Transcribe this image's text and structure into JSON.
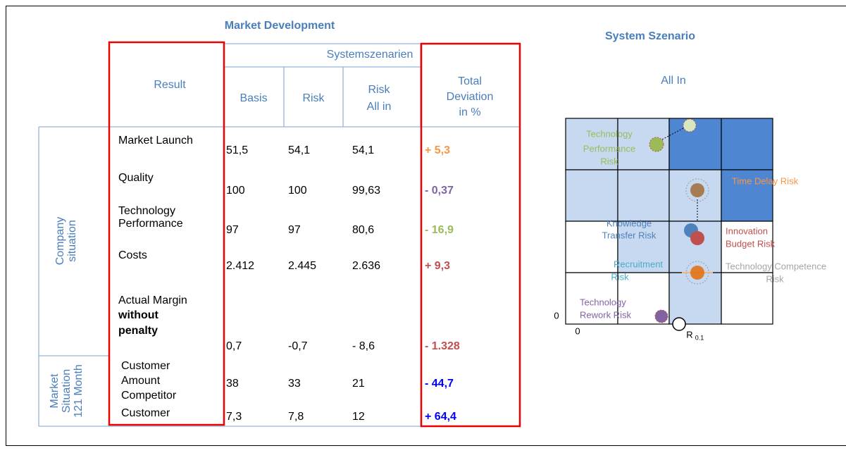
{
  "table": {
    "title": "Market Development",
    "group_header": "Systemszenarien",
    "columns": [
      [
        "Result"
      ],
      [
        "Basis"
      ],
      [
        "Risk"
      ],
      [
        "Risk",
        "All in"
      ],
      [
        "Total",
        "Deviation",
        "in %"
      ]
    ],
    "groups": [
      [
        "Company",
        "situation"
      ],
      [
        "Market",
        "Situation",
        "121 Month"
      ]
    ],
    "rows": [
      {
        "label": [
          "Market Launch"
        ],
        "values": [
          "51,5",
          "54,1",
          "54,1"
        ],
        "deviation": "+ 5,3",
        "deviation_color": "#f79646"
      },
      {
        "label": [
          "Quality"
        ],
        "values": [
          "100",
          "100",
          "99,63"
        ],
        "deviation": "- 0,37",
        "deviation_color": "#8064a2"
      },
      {
        "label": [
          "Technology",
          "Performance"
        ],
        "values": [
          "97",
          "97",
          "80,6"
        ],
        "deviation": "- 16,9",
        "deviation_color": "#9bbb59"
      },
      {
        "label": [
          "Costs"
        ],
        "values": [
          "2.412",
          "2.445",
          "2.636"
        ],
        "deviation": "+ 9,3",
        "deviation_color": "#c0504d"
      },
      {
        "label": [
          "Actual Margin"
        ],
        "label_bold": [
          "without",
          "penalty"
        ],
        "values": [
          "0,7",
          "-0,7",
          "- 8,6"
        ],
        "deviation": "- 1.328",
        "deviation_color": "#c0504d"
      },
      {
        "label": [
          "Customer",
          "Amount"
        ],
        "values": [
          "38",
          "33",
          "21"
        ],
        "deviation": "- 44,7",
        "deviation_color": "#0000ff"
      },
      {
        "label": [
          "Competitor",
          "Customer"
        ],
        "values": [
          "7,3",
          "7,8",
          "12"
        ],
        "deviation": "+ 64,4",
        "deviation_color": "#0000ff"
      }
    ]
  },
  "diagram": {
    "title": "System Szenario",
    "subtitle": "All In",
    "risks": [
      {
        "lines": [
          "Technology",
          "Performance",
          "Risk"
        ],
        "color": "#9bbb59"
      },
      {
        "lines": [
          "Time Delay Risk"
        ],
        "color": "#f79646"
      },
      {
        "lines": [
          "Knowledge",
          "Transfer Risk"
        ],
        "color": "#4f81bd"
      },
      {
        "lines": [
          "Innovation",
          "Budget Risk"
        ],
        "color": "#c0504d"
      },
      {
        "lines": [
          "Recruitment",
          "Risk"
        ],
        "color": "#4bacc6"
      },
      {
        "lines": [
          "Technology Competence",
          "Risk"
        ],
        "color": "#a6a6a6"
      },
      {
        "lines": [
          "Technology",
          "Rework Risk"
        ],
        "color": "#8064a2"
      }
    ],
    "y_zero": "0",
    "x_zero": "0",
    "x_label": "R",
    "x_label_sub": "0.1"
  }
}
